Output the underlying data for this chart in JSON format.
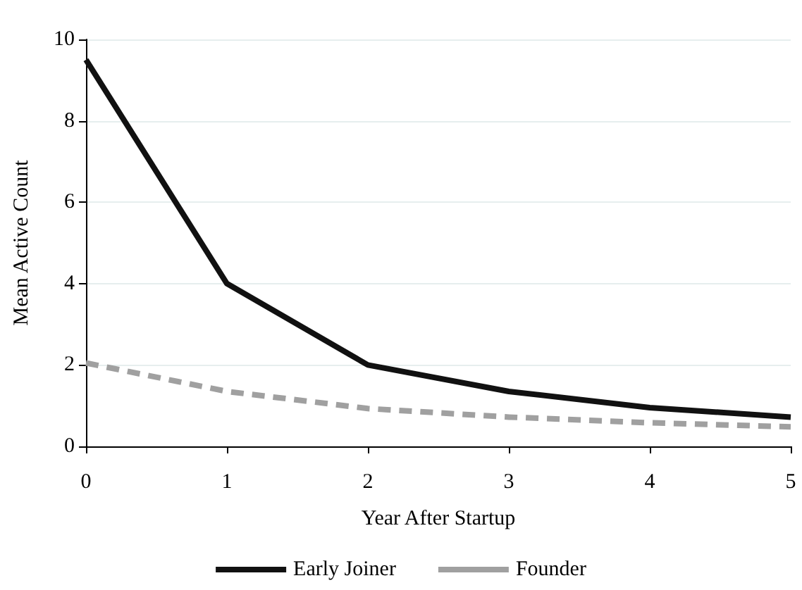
{
  "chart_data": {
    "type": "line",
    "xlabel": "Year After Startup",
    "ylabel": "Mean Active Count",
    "x": [
      0,
      1,
      2,
      3,
      4,
      5
    ],
    "xlim": [
      0,
      5
    ],
    "xticks": [
      0,
      1,
      2,
      3,
      4,
      5
    ],
    "ylim": [
      0,
      10
    ],
    "yticks": [
      0,
      2,
      4,
      6,
      8,
      10
    ],
    "grid": "y",
    "legend": "bottom",
    "marker": "none",
    "series": [
      {
        "name": "Early Joiner",
        "color": "#111111",
        "line_style": "solid",
        "values": [
          9.5,
          4.0,
          2.0,
          1.35,
          0.95,
          0.72
        ]
      },
      {
        "name": "Founder",
        "color": "#a0a0a0",
        "line_style": "dashed",
        "values": [
          2.05,
          1.35,
          0.93,
          0.72,
          0.58,
          0.48
        ]
      }
    ]
  }
}
